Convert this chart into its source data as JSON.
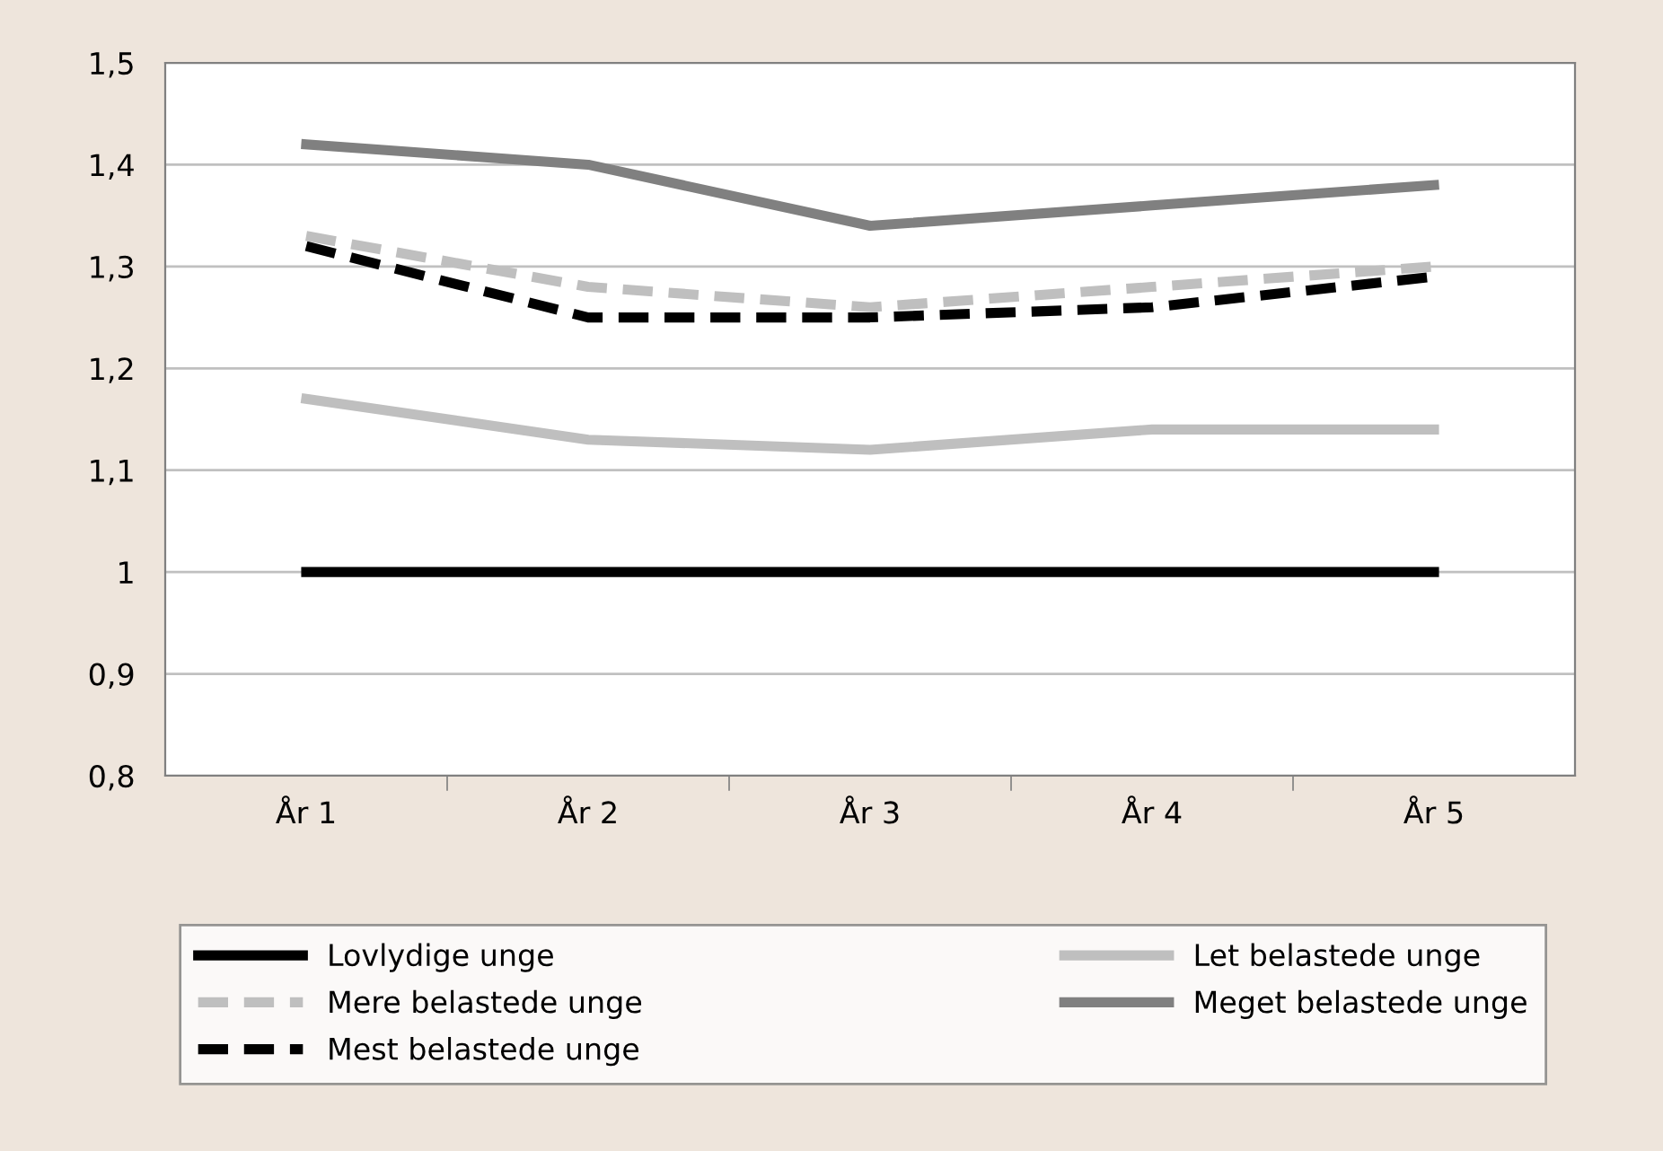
{
  "chart_data": {
    "type": "line",
    "categories": [
      "År 1",
      "År 2",
      "År 3",
      "År 4",
      "År 5"
    ],
    "series": [
      {
        "name": "Lovlydige unge",
        "color": "#000000",
        "line_style": "solid",
        "values": [
          1,
          1,
          1,
          1,
          1
        ]
      },
      {
        "name": "Let belastede unge",
        "color": "#bfbfbf",
        "line_style": "solid",
        "values": [
          1.17,
          1.13,
          1.12,
          1.14,
          1.14
        ]
      },
      {
        "name": "Mere belastede unge",
        "color": "#bfbfbf",
        "line_style": "dashed",
        "values": [
          1.33,
          1.28,
          1.26,
          1.28,
          1.3
        ]
      },
      {
        "name": "Meget belastede unge",
        "color": "#808080",
        "line_style": "solid",
        "values": [
          1.42,
          1.4,
          1.34,
          1.36,
          1.38
        ]
      },
      {
        "name": "Mest belastede unge",
        "color": "#000000",
        "line_style": "dashed",
        "values": [
          1.32,
          1.25,
          1.25,
          1.26,
          1.29
        ]
      }
    ],
    "ylim": [
      0.8,
      1.5
    ],
    "yticks": [
      {
        "value": 0.8,
        "label": "0,8"
      },
      {
        "value": 0.9,
        "label": "0,9"
      },
      1,
      {
        "value": 1.1,
        "label": "1,1"
      },
      {
        "value": 1.2,
        "label": "1,2"
      },
      {
        "value": 1.3,
        "label": "1,3"
      },
      {
        "value": 1.4,
        "label": "1,4"
      },
      {
        "value": 1.5,
        "label": "1,5"
      }
    ],
    "grid": "y",
    "legend": "bottom"
  }
}
